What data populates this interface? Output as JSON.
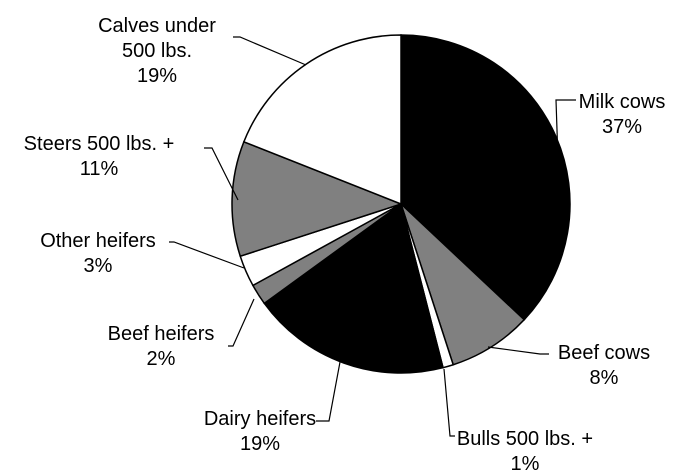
{
  "chart_data": {
    "type": "pie",
    "title": "",
    "start": "12 o'clock",
    "direction": "clockwise",
    "slices": [
      {
        "name": "Milk cows",
        "value": 37,
        "label": [
          "Milk cows",
          "37%"
        ],
        "color": "#000000"
      },
      {
        "name": "Beef cows",
        "value": 8,
        "label": [
          "Beef cows",
          "8%"
        ],
        "color": "#808080"
      },
      {
        "name": "Bulls 500 lbs. +",
        "value": 1,
        "label": [
          "Bulls 500 lbs. +",
          "1%"
        ],
        "color": "#ffffff"
      },
      {
        "name": "Dairy heifers",
        "value": 19,
        "label": [
          "Dairy heifers",
          "19%"
        ],
        "color": "#000000"
      },
      {
        "name": "Beef heifers",
        "value": 2,
        "label": [
          "Beef heifers",
          "2%"
        ],
        "color": "#808080"
      },
      {
        "name": "Other heifers",
        "value": 3,
        "label": [
          "Other heifers",
          "3%"
        ],
        "color": "#ffffff"
      },
      {
        "name": "Steers 500 lbs. +",
        "value": 11,
        "label": [
          "Steers 500 lbs. +",
          "11%"
        ],
        "color": "#808080"
      },
      {
        "name": "Calves under 500 lbs.",
        "value": 19,
        "label": [
          "Calves under",
          "500 lbs.",
          "19%"
        ],
        "color": "#ffffff"
      }
    ]
  }
}
